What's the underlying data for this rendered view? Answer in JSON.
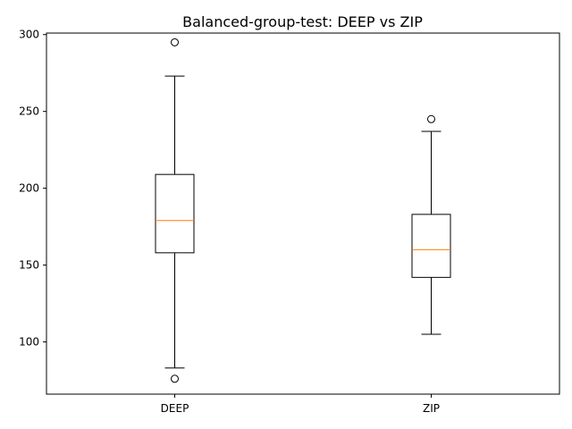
{
  "chart_data": {
    "type": "box",
    "title": "Balanced-group-test: DEEP vs ZIP",
    "xlabel": "",
    "ylabel": "",
    "ylim": [
      66,
      301
    ],
    "yticks": [
      100,
      150,
      200,
      250,
      300
    ],
    "grid": false,
    "median_color": "#ff7f0e",
    "box_color": "#000000",
    "categories": [
      "DEEP",
      "ZIP"
    ],
    "boxes": [
      {
        "label": "DEEP",
        "whisker_low": 83,
        "q1": 158,
        "median": 179,
        "q3": 209,
        "whisker_high": 273,
        "outliers": [
          76,
          295
        ]
      },
      {
        "label": "ZIP",
        "whisker_low": 105,
        "q1": 142,
        "median": 160,
        "q3": 183,
        "whisker_high": 237,
        "outliers": [
          245
        ]
      }
    ]
  }
}
